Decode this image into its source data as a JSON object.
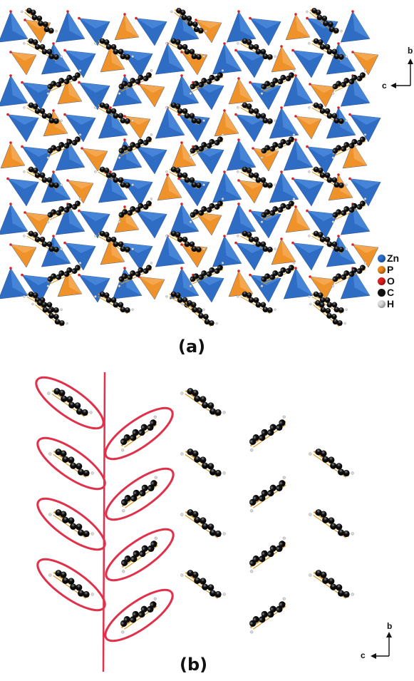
{
  "panels": [
    {
      "label": "(a)"
    },
    {
      "label": "(b)"
    }
  ],
  "axes": {
    "a": {
      "vertical": "b",
      "horizontal": "c"
    },
    "b": {
      "vertical": "b",
      "horizontal": "c"
    }
  },
  "legend": [
    {
      "symbol": "Zn",
      "color": "#2e6fd0"
    },
    {
      "symbol": "P",
      "color": "#f08a20"
    },
    {
      "symbol": "O",
      "color": "#e02020"
    },
    {
      "symbol": "C",
      "color": "#111111"
    },
    {
      "symbol": "H",
      "color": "#dddddd"
    }
  ],
  "colors": {
    "zn_polyhedron": "#2f6cc4",
    "p_polyhedron": "#f0922a",
    "carbon": "#0c0c0c",
    "bond": "#d89a2a",
    "highlight": "#e0304a"
  }
}
